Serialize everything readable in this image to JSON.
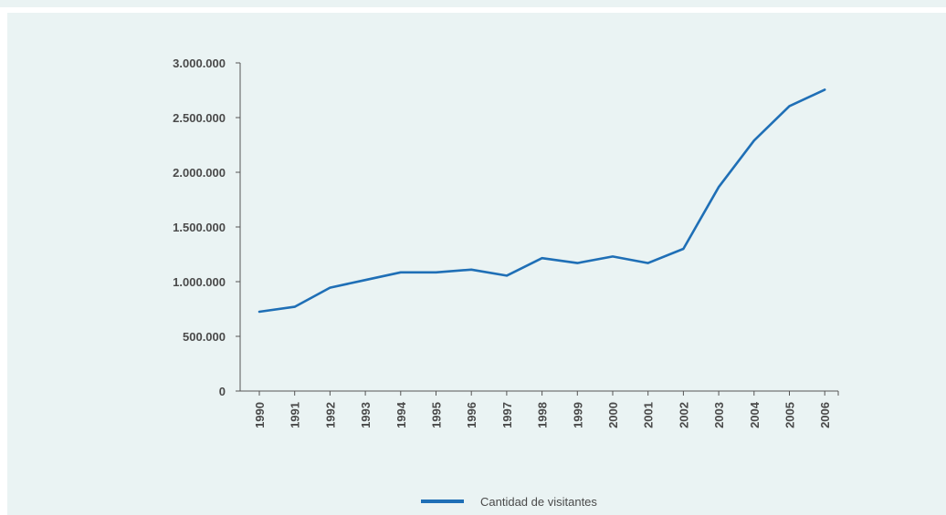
{
  "chart_data": {
    "type": "line",
    "categories": [
      "1990",
      "1991",
      "1992",
      "1993",
      "1994",
      "1995",
      "1996",
      "1997",
      "1998",
      "1999",
      "2000",
      "2001",
      "2002",
      "2003",
      "2004",
      "2005",
      "2006"
    ],
    "series": [
      {
        "name": "Cantidad de visitantes",
        "values": [
          725000,
          770000,
          945000,
          1015000,
          1085000,
          1085000,
          1110000,
          1055000,
          1215000,
          1170000,
          1230000,
          1170000,
          1300000,
          1865000,
          2290000,
          2605000,
          2755000
        ],
        "color": "#1f6fb6"
      }
    ],
    "y_ticks": [
      "0",
      "500.000",
      "1.000.000",
      "1.500.000",
      "2.000.000",
      "2.500.000",
      "3.000.000"
    ],
    "ylim": [
      0,
      3000000
    ],
    "grid": false,
    "legend": "bottom-center"
  }
}
